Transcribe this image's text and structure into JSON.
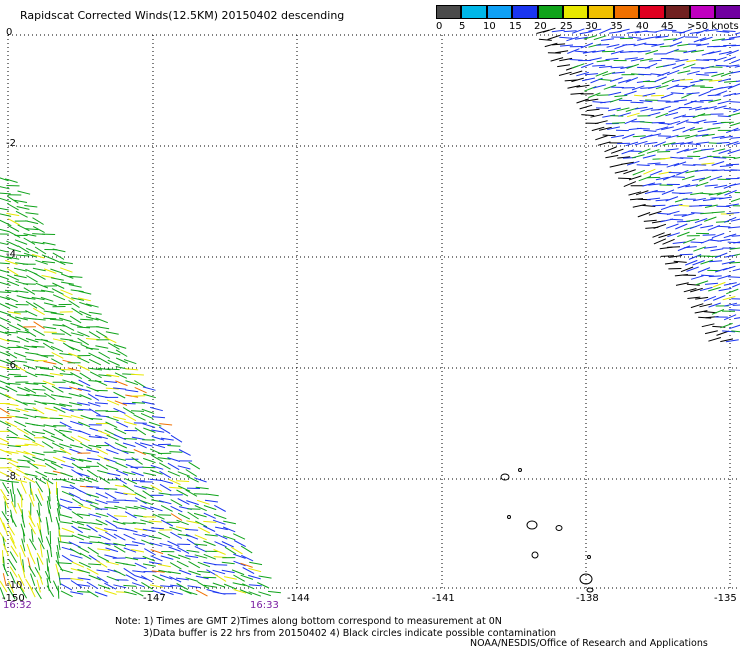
{
  "title": "Rapidscat Corrected Winds(12.5KM) 20150402 descending",
  "legend": {
    "colors": [
      "#4b4b4b",
      "#00b7e8",
      "#0ea0f5",
      "#1a35f0",
      "#0fa31a",
      "#e8e800",
      "#f0c000",
      "#f07000",
      "#e00020",
      "#702020",
      "#c000c0",
      "#7000a0"
    ],
    "labels": [
      "0",
      "5",
      "10",
      "15",
      "20",
      "25",
      "30",
      "35",
      "40",
      "45",
      ">50 knots"
    ]
  },
  "map": {
    "lat_labels": [
      "0",
      "-2",
      "-4",
      "-6",
      "-8",
      "-10"
    ],
    "lon_labels": [
      "-150",
      "-147",
      "-144",
      "-141",
      "-138",
      "-135"
    ],
    "grid_color": "#000000",
    "swath_colors": {
      "green": "#0fa31a",
      "blue": "#1a35f0",
      "yellow": "#e8e800",
      "orange": "#f07000",
      "black": "#000000"
    },
    "time_left": "16:32",
    "time_right": "16:33"
  },
  "notes": {
    "line1": "Note: 1) Times are GMT 2)Times along bottom correspond to measurement at 0N",
    "line2": "3)Data buffer is 22 hrs from 20150402 4) Black circles indicate possible contamination"
  },
  "credit": "NOAA/NESDIS/Office of Research and Applications"
}
